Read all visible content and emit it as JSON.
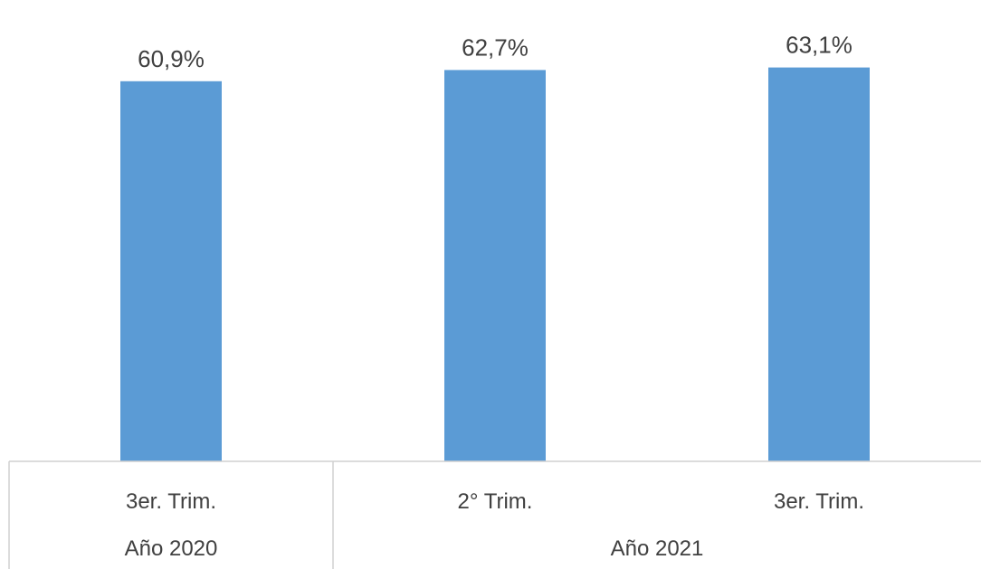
{
  "chart_data": {
    "type": "bar",
    "categories": [
      "3er. Trim.",
      "2° Trim.",
      "3er. Trim."
    ],
    "groups": [
      {
        "label": "Año 2020",
        "categories": 1
      },
      {
        "label": "Año 2021",
        "categories": 2
      }
    ],
    "values": [
      60.9,
      62.7,
      63.1
    ],
    "value_labels": [
      "60,9%",
      "62,7%",
      "63,1%"
    ],
    "title": "",
    "xlabel": "",
    "ylabel": "",
    "ylim": [
      0,
      70
    ],
    "grid": false,
    "legend": "none",
    "bar_color": "#5b9bd5"
  }
}
